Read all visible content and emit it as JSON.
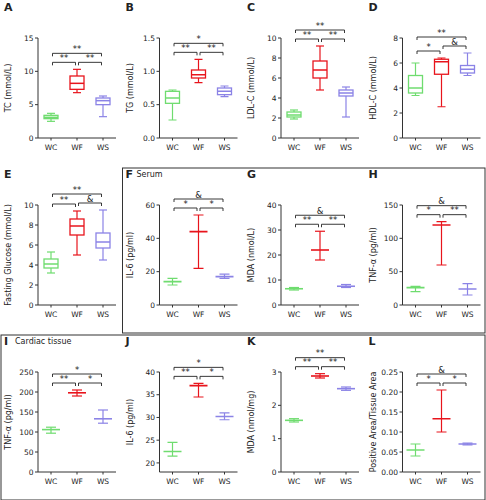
{
  "chart_data": [
    {
      "type": "box",
      "label": "A",
      "y_label": "TC (mmol/L)",
      "categories": [
        "WC",
        "WF",
        "WS"
      ],
      "colors": [
        "#6fdc6f",
        "#e8141c",
        "#8b83e6"
      ],
      "min": [
        2.5,
        6.8,
        3.2
      ],
      "q1": [
        2.9,
        7.3,
        5.0
      ],
      "median": [
        3.1,
        8.2,
        5.6
      ],
      "q3": [
        3.4,
        9.3,
        6.0
      ],
      "max": [
        3.7,
        10.3,
        6.3
      ],
      "ylim": [
        0,
        15
      ],
      "yticks": [
        0,
        5,
        10,
        15
      ],
      "annotations": [
        {
          "pair": [
            "WC",
            "WF"
          ],
          "text": "**"
        },
        {
          "pair": [
            "WF",
            "WS"
          ],
          "text": "**"
        },
        {
          "pair": [
            "WC",
            "WS"
          ],
          "text": "**"
        }
      ]
    },
    {
      "type": "box",
      "label": "B",
      "y_label": "TG (mmol/L)",
      "categories": [
        "WC",
        "WF",
        "WS"
      ],
      "colors": [
        "#6fdc6f",
        "#e8141c",
        "#8b83e6"
      ],
      "min": [
        0.27,
        0.83,
        0.62
      ],
      "q1": [
        0.52,
        0.9,
        0.65
      ],
      "median": [
        0.6,
        0.95,
        0.7
      ],
      "q3": [
        0.7,
        1.02,
        0.75
      ],
      "max": [
        0.72,
        1.18,
        0.78
      ],
      "ylim": [
        0,
        1.5
      ],
      "yticks": [
        {
          "value": 0,
          "label": "0.0"
        },
        {
          "value": 0.5,
          "label": "0.5"
        },
        {
          "value": 1,
          "label": "1.0"
        },
        {
          "value": 1.5,
          "label": "1.5"
        }
      ],
      "annotations": [
        {
          "pair": [
            "WC",
            "WF"
          ],
          "text": "**"
        },
        {
          "pair": [
            "WF",
            "WS"
          ],
          "text": "**"
        },
        {
          "pair": [
            "WC",
            "WS"
          ],
          "text": "*"
        }
      ]
    },
    {
      "type": "box",
      "label": "C",
      "y_label": "LDL-C (mmol/L)",
      "categories": [
        "WC",
        "WF",
        "WS"
      ],
      "colors": [
        "#6fdc6f",
        "#e8141c",
        "#8b83e6"
      ],
      "min": [
        1.9,
        4.8,
        2.1
      ],
      "q1": [
        2.1,
        6.0,
        4.2
      ],
      "median": [
        2.3,
        6.8,
        4.5
      ],
      "q3": [
        2.6,
        7.7,
        4.8
      ],
      "max": [
        2.8,
        9.2,
        5.1
      ],
      "ylim": [
        0,
        10
      ],
      "yticks": [
        0,
        2,
        4,
        6,
        8,
        10
      ],
      "annotations": [
        {
          "pair": [
            "WC",
            "WF"
          ],
          "text": "**"
        },
        {
          "pair": [
            "WF",
            "WS"
          ],
          "text": "**"
        },
        {
          "pair": [
            "WC",
            "WS"
          ],
          "text": "**"
        }
      ]
    },
    {
      "type": "box",
      "label": "D",
      "y_label": "HDL-C (mmol/L)",
      "categories": [
        "WC",
        "WF",
        "WS"
      ],
      "colors": [
        "#6fdc6f",
        "#e8141c",
        "#8b83e6"
      ],
      "min": [
        3.4,
        2.5,
        5.0
      ],
      "q1": [
        3.6,
        5.1,
        5.2
      ],
      "median": [
        4.0,
        6.1,
        5.5
      ],
      "q3": [
        5.0,
        6.3,
        5.8
      ],
      "max": [
        6.0,
        6.4,
        6.8
      ],
      "ylim": [
        0,
        8
      ],
      "yticks": [
        0,
        2,
        4,
        6,
        8
      ],
      "annotations": [
        {
          "pair": [
            "WC",
            "WF"
          ],
          "text": "*"
        },
        {
          "pair": [
            "WF",
            "WS"
          ],
          "text": "&"
        },
        {
          "pair": [
            "WC",
            "WS"
          ],
          "text": "**"
        }
      ]
    },
    {
      "type": "box",
      "label": "E",
      "y_label": "Fasting Glucose (mmol/L)",
      "categories": [
        "WC",
        "WF",
        "WS"
      ],
      "colors": [
        "#6fdc6f",
        "#e8141c",
        "#8b83e6"
      ],
      "min": [
        3.2,
        5.0,
        4.5
      ],
      "q1": [
        3.7,
        7.0,
        5.7
      ],
      "median": [
        4.1,
        7.9,
        6.3
      ],
      "q3": [
        4.6,
        8.6,
        7.2
      ],
      "max": [
        5.3,
        9.4,
        9.5
      ],
      "ylim": [
        0,
        10
      ],
      "yticks": [
        0,
        2,
        4,
        6,
        8,
        10
      ],
      "annotations": [
        {
          "pair": [
            "WC",
            "WF"
          ],
          "text": "**"
        },
        {
          "pair": [
            "WF",
            "WS"
          ],
          "text": "&"
        },
        {
          "pair": [
            "WC",
            "WS"
          ],
          "text": "**"
        }
      ]
    },
    {
      "type": "errorbar",
      "label": "F",
      "subtitle": "Serum",
      "y_label": "IL-6 (pg/ml)",
      "categories": [
        "WC",
        "WF",
        "WS"
      ],
      "colors": [
        "#6fdc6f",
        "#e8141c",
        "#8b83e6"
      ],
      "values": [
        14,
        44,
        17
      ],
      "lower": [
        12,
        22,
        16
      ],
      "upper": [
        16,
        54,
        18.5
      ],
      "ylim": [
        0,
        60
      ],
      "yticks": [
        0,
        20,
        40,
        60
      ],
      "annotations": [
        {
          "pair": [
            "WC",
            "WF"
          ],
          "text": "*"
        },
        {
          "pair": [
            "WF",
            "WS"
          ],
          "text": "*"
        },
        {
          "pair": [
            "WC",
            "WS"
          ],
          "text": "&"
        }
      ]
    },
    {
      "type": "errorbar",
      "label": "G",
      "y_label": "MDA (nmol/L)",
      "categories": [
        "WC",
        "WF",
        "WS"
      ],
      "colors": [
        "#6fdc6f",
        "#e8141c",
        "#8b83e6"
      ],
      "values": [
        6.5,
        22,
        7.5
      ],
      "lower": [
        6,
        18,
        7
      ],
      "upper": [
        7,
        29.5,
        8.2
      ],
      "ylim": [
        0,
        40
      ],
      "yticks": [
        0,
        10,
        20,
        30,
        40
      ],
      "annotations": [
        {
          "pair": [
            "WC",
            "WF"
          ],
          "text": "**"
        },
        {
          "pair": [
            "WF",
            "WS"
          ],
          "text": "**"
        },
        {
          "pair": [
            "WC",
            "WS"
          ],
          "text": "&"
        }
      ]
    },
    {
      "type": "errorbar",
      "label": "H",
      "y_label": "TNF-α (pg/ml)",
      "categories": [
        "WC",
        "WF",
        "WS"
      ],
      "colors": [
        "#6fdc6f",
        "#e8141c",
        "#8b83e6"
      ],
      "values": [
        26,
        120,
        24
      ],
      "lower": [
        20,
        60,
        15
      ],
      "upper": [
        28,
        125,
        32
      ],
      "ylim": [
        0,
        150
      ],
      "yticks": [
        0,
        50,
        100,
        150
      ],
      "annotations": [
        {
          "pair": [
            "WC",
            "WF"
          ],
          "text": "*"
        },
        {
          "pair": [
            "WF",
            "WS"
          ],
          "text": "**"
        },
        {
          "pair": [
            "WC",
            "WS"
          ],
          "text": "&"
        }
      ]
    },
    {
      "type": "errorbar",
      "label": "I",
      "subtitle": "Cardiac tissue",
      "y_label": "TNF-α (pg/ml)",
      "categories": [
        "WC",
        "WF",
        "WS"
      ],
      "colors": [
        "#6fdc6f",
        "#e8141c",
        "#8b83e6"
      ],
      "values": [
        106,
        198,
        133
      ],
      "lower": [
        97,
        190,
        122
      ],
      "upper": [
        112,
        205,
        155
      ],
      "ylim": [
        0,
        250
      ],
      "yticks": [
        0,
        50,
        100,
        150,
        200,
        250
      ],
      "annotations": [
        {
          "pair": [
            "WC",
            "WF"
          ],
          "text": "**"
        },
        {
          "pair": [
            "WF",
            "WS"
          ],
          "text": "*"
        },
        {
          "pair": [
            "WC",
            "WS"
          ],
          "text": "*"
        }
      ]
    },
    {
      "type": "errorbar",
      "label": "J",
      "y_label": "IL-6 (pg/ml)",
      "categories": [
        "WC",
        "WF",
        "WS"
      ],
      "colors": [
        "#6fdc6f",
        "#e8141c",
        "#8b83e6"
      ],
      "values": [
        22.5,
        37,
        30.2
      ],
      "lower": [
        21.5,
        34.5,
        29.5
      ],
      "upper": [
        24.5,
        37.5,
        31
      ],
      "ylim": [
        18,
        40
      ],
      "yticks": [
        20,
        25,
        30,
        35,
        40
      ],
      "annotations": [
        {
          "pair": [
            "WC",
            "WF"
          ],
          "text": "**"
        },
        {
          "pair": [
            "WF",
            "WS"
          ],
          "text": "*"
        },
        {
          "pair": [
            "WC",
            "WS"
          ],
          "text": "*"
        }
      ]
    },
    {
      "type": "errorbar",
      "label": "K",
      "y_label": "MDA (nmol/mg)",
      "categories": [
        "WC",
        "WF",
        "WS"
      ],
      "colors": [
        "#6fdc6f",
        "#e8141c",
        "#8b83e6"
      ],
      "values": [
        1.55,
        2.88,
        2.5
      ],
      "lower": [
        1.5,
        2.82,
        2.45
      ],
      "upper": [
        1.6,
        2.95,
        2.55
      ],
      "ylim": [
        0,
        3
      ],
      "yticks": [
        0,
        1,
        2,
        3
      ],
      "annotations": [
        {
          "pair": [
            "WC",
            "WF"
          ],
          "text": "**"
        },
        {
          "pair": [
            "WF",
            "WS"
          ],
          "text": "**"
        },
        {
          "pair": [
            "WC",
            "WS"
          ],
          "text": "**"
        }
      ]
    },
    {
      "type": "errorbar",
      "label": "L",
      "y_label": "Positive Area/Tissue Area",
      "categories": [
        "WC",
        "WF",
        "WS"
      ],
      "colors": [
        "#6fdc6f",
        "#e8141c",
        "#8b83e6"
      ],
      "values": [
        0.055,
        0.133,
        0.07
      ],
      "lower": [
        0.04,
        0.1,
        0.068
      ],
      "upper": [
        0.07,
        0.205,
        0.072
      ],
      "ylim": [
        0,
        0.25
      ],
      "yticks": [
        {
          "value": 0,
          "label": "0.00"
        },
        {
          "value": 0.05,
          "label": "0.05"
        },
        {
          "value": 0.1,
          "label": "0.10"
        },
        {
          "value": 0.15,
          "label": "0.15"
        },
        {
          "value": 0.2,
          "label": "0.20"
        },
        {
          "value": 0.25,
          "label": "0.25"
        }
      ],
      "annotations": [
        {
          "pair": [
            "WC",
            "WF"
          ],
          "text": "*"
        },
        {
          "pair": [
            "WF",
            "WS"
          ],
          "text": "*"
        },
        {
          "pair": [
            "WC",
            "WS"
          ],
          "text": "&"
        }
      ]
    }
  ]
}
